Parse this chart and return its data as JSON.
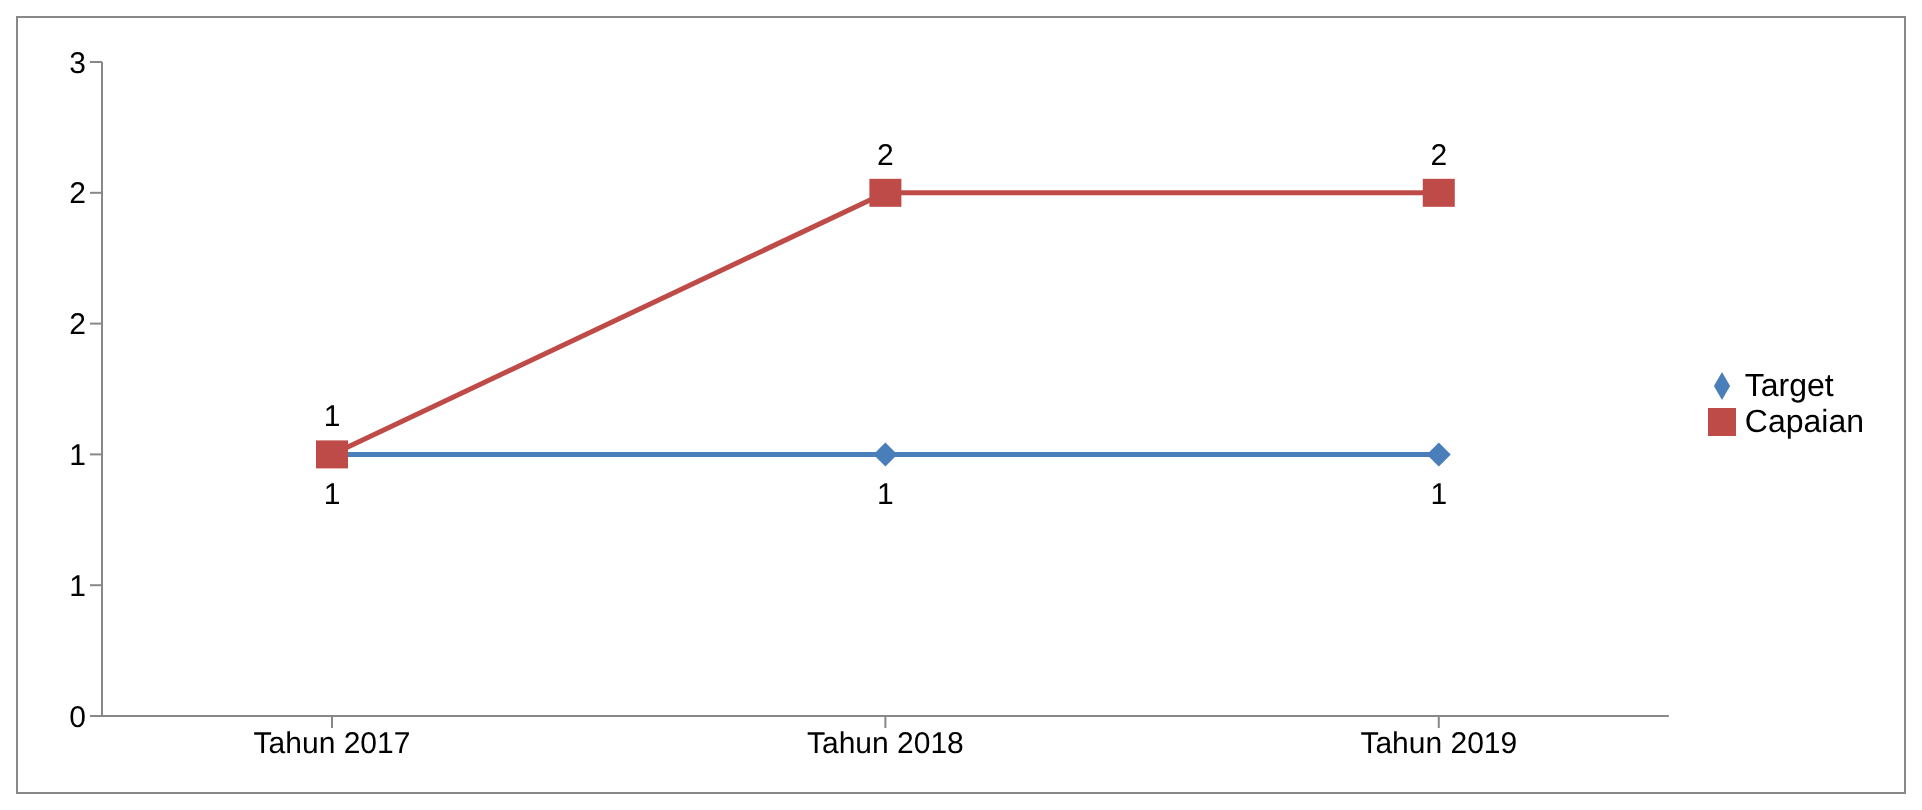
{
  "chart_data": {
    "type": "line",
    "categories": [
      "Tahun 2017",
      "Tahun 2018",
      "Tahun 2019"
    ],
    "series": [
      {
        "name": "Target",
        "color": "#4a7ebb",
        "values": [
          1,
          1,
          1
        ],
        "marker": "diamond"
      },
      {
        "name": "Capaian",
        "color": "#be4b48",
        "values": [
          1,
          2,
          2
        ],
        "marker": "square"
      }
    ],
    "ylim": [
      0,
      2.5
    ],
    "yticks": [
      0,
      {
        "value": 0.5,
        "label": "1"
      },
      1,
      {
        "value": 1.5,
        "label": "2"
      },
      2,
      {
        "value": 2.5,
        "label": "3"
      }
    ],
    "data_labels": true,
    "legend": "right",
    "grid": false
  }
}
